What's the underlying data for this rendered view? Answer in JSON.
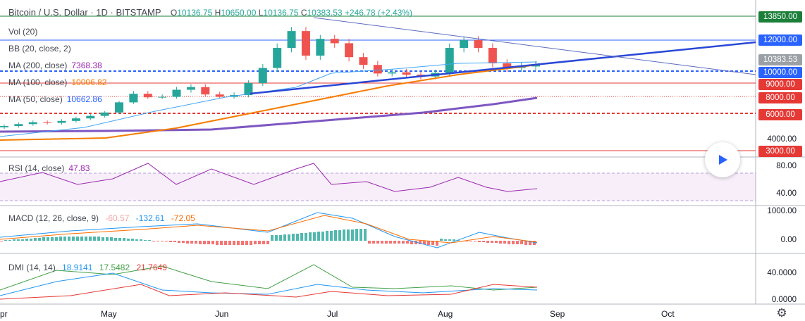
{
  "header": {
    "symbol": "Bitcoin / U.S. Dollar",
    "interval": "1D",
    "exchange": "BITSTAMP",
    "o_label": "O",
    "o_value": "10136.75",
    "h_label": "H",
    "h_value": "10650.00",
    "l_label": "L",
    "l_value": "10136.75",
    "c_label": "C",
    "c_value": "10383.53",
    "change": "+246.78 (+2.43%)"
  },
  "indicators": {
    "vol": "Vol (20)",
    "bb": "BB (20, close, 2)",
    "ma200": {
      "label": "MA (200, close)",
      "value": "7368.38",
      "color": "#9c27b0"
    },
    "ma100": {
      "label": "MA (100, close)",
      "value": "10006.82",
      "color": "#f57c00"
    },
    "ma50": {
      "label": "MA (50, close)",
      "value": "10662.86",
      "color": "#2962ff"
    }
  },
  "rsi": {
    "label": "RSI (14, close)",
    "value": "47.83",
    "color": "#9c27b0"
  },
  "macd": {
    "label": "MACD (12, 26, close, 9)",
    "hist": "-60.57",
    "macd": "-132.61",
    "signal": "-72.05"
  },
  "dmi": {
    "label": "DMI (14, 14)",
    "plus": "18.9141",
    "minus": "17.5482",
    "adx": "21.7649"
  },
  "price_tags": [
    {
      "text": "13850.00",
      "color": "#1b7f3a"
    },
    {
      "text": "12000.00",
      "color": "#2962ff"
    },
    {
      "text": "10383.53",
      "color": "#9aa0a6"
    },
    {
      "text": "10000.00",
      "color": "#2962ff"
    },
    {
      "text": "9000.00",
      "color": "#e53935"
    },
    {
      "text": "8000.00",
      "color": "#e53935"
    },
    {
      "text": "6000.00",
      "color": "#e53935"
    },
    {
      "text": "3000.00",
      "color": "#e53935"
    }
  ],
  "price_axis": [
    "4000.00"
  ],
  "rsi_axis": [
    "80.00",
    "40.00"
  ],
  "macd_axis": [
    "1000.00",
    "0.00"
  ],
  "dmi_axis": [
    "40.0000",
    "0.0000"
  ],
  "x_axis": [
    "pr",
    "May",
    "Jun",
    "Jul",
    "Aug",
    "Sep",
    "Oct"
  ],
  "chart_data": {
    "type": "candlestick",
    "title": "Bitcoin / U.S. Dollar · 1D · BITSTAMP",
    "x_range": [
      "Apr",
      "Oct"
    ],
    "last_candle": {
      "open": 10136.75,
      "high": 10650.0,
      "low": 10136.75,
      "close": 10383.53
    },
    "close_series": [
      5000,
      5150,
      5300,
      5250,
      5400,
      5600,
      5800,
      6100,
      7300,
      8200,
      7900,
      7950,
      8500,
      8700,
      8150,
      7950,
      8100,
      9000,
      10200,
      11500,
      12700,
      11000,
      12100,
      11800,
      10900,
      10400,
      9800,
      9900,
      9700,
      9550,
      9850,
      11500,
      12000,
      11500,
      10500,
      10200,
      10300,
      10383.53
    ],
    "horizontal_levels": [
      13850,
      12000,
      10000,
      9000,
      8000,
      6000,
      3000
    ],
    "moving_averages": {
      "MA200": 7368.38,
      "MA100": 10006.82,
      "MA50": 10662.86
    },
    "rsi_last": 47.83,
    "macd_last": {
      "histogram": -60.57,
      "macd": -132.61,
      "signal": -72.05
    },
    "dmi_last": {
      "plus_di": 18.9141,
      "minus_di": 17.5482,
      "adx": 21.7649
    }
  }
}
